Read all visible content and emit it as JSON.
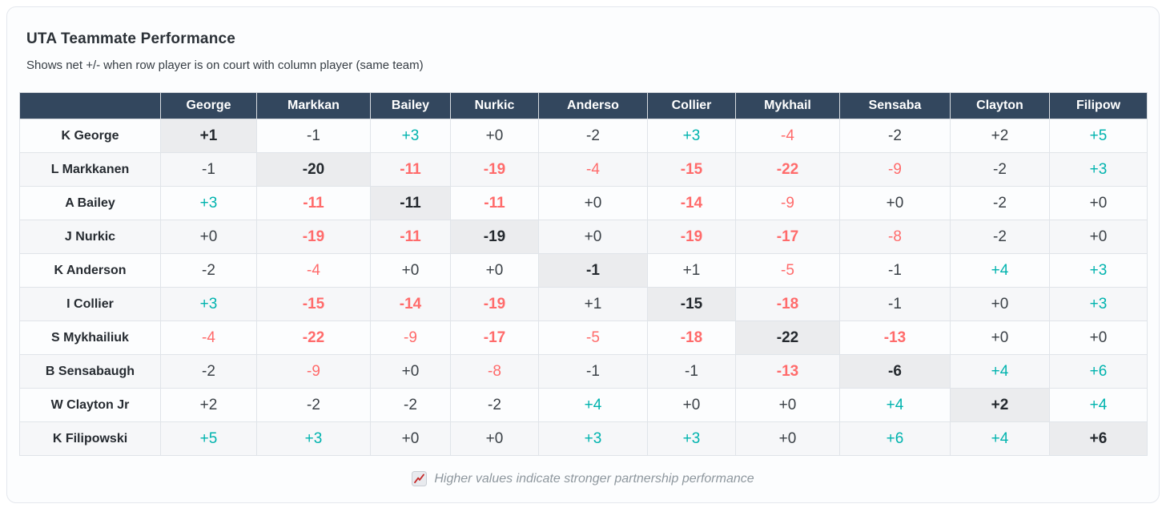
{
  "title": "UTA Teammate Performance",
  "subtitle": "Shows net +/- when row player is on court with column player (same team)",
  "footer": {
    "icon": "chart-increasing-icon",
    "text": "Higher values indicate stronger partnership performance"
  },
  "colors": {
    "header_bg": "#33475e",
    "header_text": "#ffffff",
    "positive": "#00b3ae",
    "negative": "#ff6b6b",
    "neutral": "#3a4046",
    "diagonal_bg": "#ebecee",
    "alt_row_bg": "#f6f7f9",
    "card_bg": "#fcfdfe",
    "border": "#e0e4e9",
    "footer_text": "#8e979e",
    "icon_line_red": "#c62828"
  },
  "chart_data": {
    "type": "heatmap",
    "title": "UTA Teammate Performance",
    "description": "Net +/- when row player is on court with column player (same team)",
    "columns": [
      "George",
      "Markkan",
      "Bailey",
      "Nurkic",
      "Anderso",
      "Collier",
      "Mykhail",
      "Sensaba",
      "Clayton",
      "Filipow"
    ],
    "rows": [
      "K George",
      "L Markkanen",
      "A Bailey",
      "J Nurkic",
      "K Anderson",
      "I Collier",
      "S Mykhailiuk",
      "B Sensabaugh",
      "W Clayton Jr",
      "K Filipowski"
    ],
    "values": [
      [
        1,
        -1,
        3,
        0,
        -2,
        3,
        -4,
        -2,
        2,
        5
      ],
      [
        -1,
        -20,
        -11,
        -19,
        -4,
        -15,
        -22,
        -9,
        -2,
        3
      ],
      [
        3,
        -11,
        -11,
        -11,
        0,
        -14,
        -9,
        0,
        -2,
        0
      ],
      [
        0,
        -19,
        -11,
        -19,
        0,
        -19,
        -17,
        -8,
        -2,
        0
      ],
      [
        -2,
        -4,
        0,
        0,
        -1,
        1,
        -5,
        -1,
        4,
        3
      ],
      [
        3,
        -15,
        -14,
        -19,
        1,
        -15,
        -18,
        -1,
        0,
        3
      ],
      [
        -4,
        -22,
        -9,
        -17,
        -5,
        -18,
        -22,
        -13,
        0,
        0
      ],
      [
        -2,
        -9,
        0,
        -8,
        -1,
        -1,
        -13,
        -6,
        4,
        6
      ],
      [
        2,
        -2,
        -2,
        -2,
        4,
        0,
        0,
        4,
        2,
        4
      ],
      [
        5,
        3,
        0,
        0,
        3,
        3,
        0,
        6,
        4,
        6
      ]
    ],
    "value_format": "signed (+0 shown for zero)",
    "color_rule": {
      "positive_min": 3,
      "negative_max": -3,
      "bold_abs_min": 10
    },
    "diagonal_highlight": true,
    "legend_note": "Higher values indicate stronger partnership performance"
  }
}
